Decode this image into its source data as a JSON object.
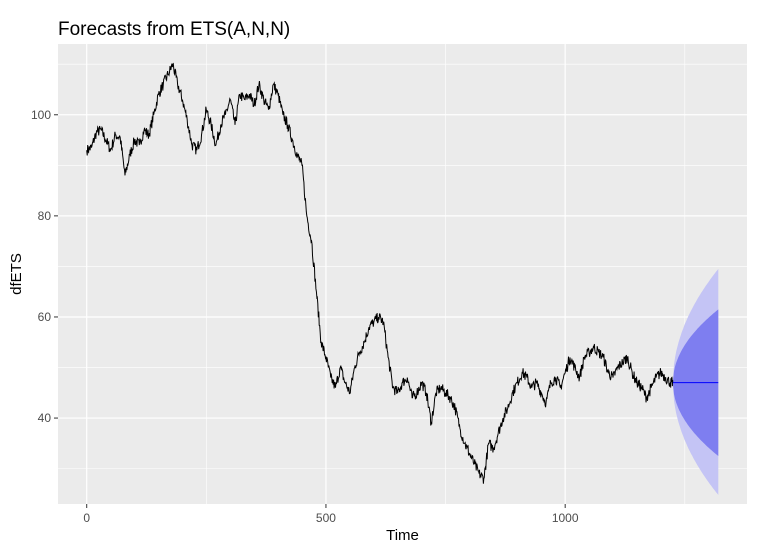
{
  "chart_data": {
    "type": "line",
    "title": "Forecasts from ETS(A,N,N)",
    "xlabel": "Time",
    "ylabel": "dfETS",
    "xlim": [
      -60,
      1380
    ],
    "ylim": [
      23,
      114
    ],
    "x_ticks": [
      0,
      500,
      1000
    ],
    "y_ticks": [
      40,
      60,
      80,
      100
    ],
    "grid": true,
    "colors": {
      "panel": "#ebebeb",
      "grid_major": "#ffffff",
      "series": "#000000",
      "forecast": "#0000ff",
      "ci80": "#7e7ef0",
      "ci95": "#c4c4f5"
    },
    "series": [
      {
        "values_x": [
          0,
          10,
          20,
          30,
          40,
          50,
          60,
          70,
          80,
          90,
          100,
          110,
          120,
          130,
          140,
          150,
          160,
          170,
          180,
          190,
          200,
          210,
          220,
          230,
          240,
          250,
          260,
          270,
          280,
          290,
          300,
          310,
          320,
          330,
          340,
          350,
          360,
          370,
          380,
          390,
          400,
          410,
          420,
          430,
          440,
          450,
          460,
          470,
          480,
          490,
          500,
          510,
          520,
          530,
          540,
          550,
          560,
          570,
          580,
          590,
          600,
          610,
          620,
          630,
          640,
          650,
          660,
          670,
          680,
          690,
          700,
          710,
          720,
          730,
          740,
          750,
          760,
          770,
          780,
          790,
          800,
          810,
          820,
          830,
          840,
          850,
          860,
          870,
          880,
          890,
          900,
          910,
          920,
          930,
          940,
          950,
          960,
          970,
          980,
          990,
          1000,
          1010,
          1020,
          1030,
          1040,
          1050,
          1060,
          1070,
          1080,
          1090,
          1100,
          1110,
          1120,
          1130,
          1140,
          1150,
          1160,
          1170,
          1180,
          1190,
          1200,
          1210,
          1220,
          1225
        ],
        "values": [
          93,
          93.5,
          96.5,
          97,
          95,
          93,
          96,
          95.5,
          88,
          92,
          95,
          94,
          97,
          96,
          100,
          104,
          106,
          108,
          110,
          106,
          103,
          99,
          94,
          93,
          96,
          101,
          98,
          94,
          98,
          100,
          103,
          98,
          104,
          103,
          104,
          102,
          106,
          103,
          101,
          106,
          104,
          100,
          98,
          95,
          92,
          90,
          80,
          75,
          65,
          55,
          52,
          48,
          46,
          50,
          47,
          45,
          50,
          53,
          55,
          58,
          59,
          60,
          59,
          52,
          46,
          45,
          47,
          48,
          44,
          45,
          47,
          45,
          39,
          45,
          46,
          45,
          44,
          42,
          38,
          35,
          33,
          31,
          29,
          28,
          35,
          34,
          37,
          40,
          42,
          45,
          47,
          49,
          48,
          46,
          47,
          45,
          43,
          47,
          48,
          46,
          49,
          52,
          50,
          48,
          52,
          53,
          54,
          53,
          52,
          49,
          48,
          50,
          51,
          52,
          49,
          47,
          46,
          44,
          46,
          48,
          49,
          48,
          47,
          47
        ]
      }
    ],
    "forecast": {
      "x": [
        1225,
        1320
      ],
      "point": 47,
      "lo80": 32.5,
      "hi80": 61.5,
      "lo95": 24.8,
      "hi95": 69.5
    }
  }
}
